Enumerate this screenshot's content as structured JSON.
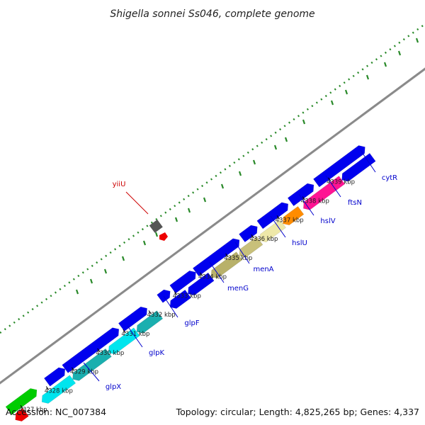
{
  "title": "Shigella sonnei Ss046, complete genome",
  "footer": {
    "accession": "Accession: NC_007384",
    "stats": "Topology: circular; Length: 4,825,265 bp; Genes: 4,337"
  },
  "colors": {
    "backbone": "#8c8c8c",
    "forward_strand": "#0000ee",
    "gc_dots": "#2a8a2a",
    "label_line_forward": "#cc0000",
    "label_line_reverse": "#0000cc",
    "tick_line": "#000000"
  },
  "ticks": [
    {
      "label": "4327 kbp",
      "pos": 4327
    },
    {
      "label": "4328 kbp",
      "pos": 4328
    },
    {
      "label": "4329 kbp",
      "pos": 4329
    },
    {
      "label": "4330 kbp",
      "pos": 4330
    },
    {
      "label": "4331 kbp",
      "pos": 4331
    },
    {
      "label": "4332 kbp",
      "pos": 4332
    },
    {
      "label": "4333 kbp",
      "pos": 4333
    },
    {
      "label": "4334 kbp",
      "pos": 4334
    },
    {
      "label": "4335 kbp",
      "pos": 4335
    },
    {
      "label": "4336 kbp",
      "pos": 4336
    },
    {
      "label": "4337 kbp",
      "pos": 4337
    },
    {
      "label": "4338 kbp",
      "pos": 4338
    },
    {
      "label": "4339 kbp",
      "pos": 4339
    }
  ],
  "gene_labels": [
    {
      "name": "yiiU",
      "pos": 4333.6,
      "strand": "forward"
    },
    {
      "name": "glpX",
      "pos": 4328.9,
      "strand": "reverse"
    },
    {
      "name": "glpK",
      "pos": 4330.5,
      "strand": "reverse"
    },
    {
      "name": "glpF",
      "pos": 4331.9,
      "strand": "reverse"
    },
    {
      "name": "menG",
      "pos": 4333.2,
      "strand": "reverse"
    },
    {
      "name": "menA",
      "pos": 4334.1,
      "strand": "reverse"
    },
    {
      "name": "hslU",
      "pos": 4335.4,
      "strand": "reverse"
    },
    {
      "name": "hslV",
      "pos": 4336.3,
      "strand": "reverse"
    },
    {
      "name": "ftsN",
      "pos": 4337.0,
      "strand": "reverse"
    },
    {
      "name": "cytR",
      "pos": 4338.2,
      "strand": "reverse"
    }
  ]
}
